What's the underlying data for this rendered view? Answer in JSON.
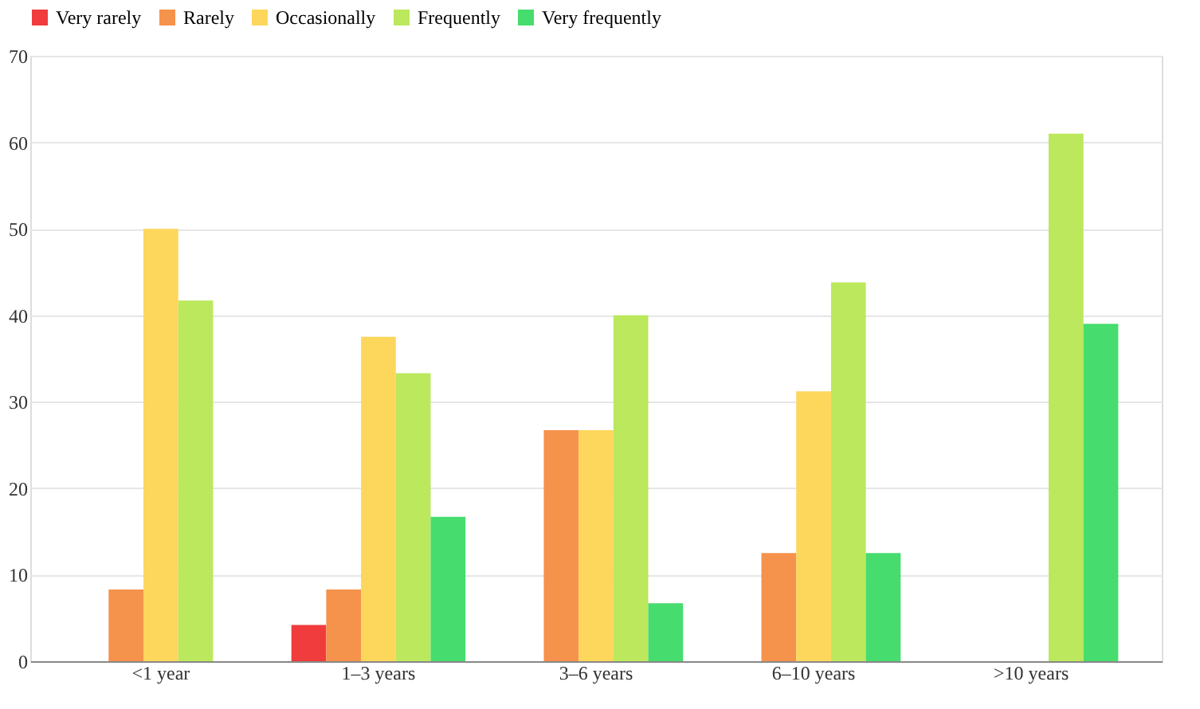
{
  "chart_data": {
    "type": "bar",
    "categories": [
      "<1 year",
      "1–3 years",
      "3–6 years",
      "6–10 years",
      ">10 years"
    ],
    "series": [
      {
        "name": "Very rarely",
        "color": "#f03c3c",
        "values": [
          0,
          4.2,
          0,
          0,
          0
        ]
      },
      {
        "name": "Rarely",
        "color": "#f5924c",
        "values": [
          8.3,
          8.3,
          26.7,
          12.5,
          0
        ]
      },
      {
        "name": "Occasionally",
        "color": "#fdd65c",
        "values": [
          50,
          37.5,
          26.7,
          31.2,
          0
        ]
      },
      {
        "name": "Frequently",
        "color": "#bbe85c",
        "values": [
          41.7,
          33.3,
          40,
          43.8,
          61
        ]
      },
      {
        "name": "Very frequently",
        "color": "#46dc6e",
        "values": [
          0,
          16.7,
          6.7,
          12.5,
          39
        ]
      }
    ],
    "ylim": [
      0,
      70
    ],
    "yticks": [
      0,
      10,
      20,
      30,
      40,
      50,
      60,
      70
    ],
    "grid": "y",
    "legend": "top"
  }
}
